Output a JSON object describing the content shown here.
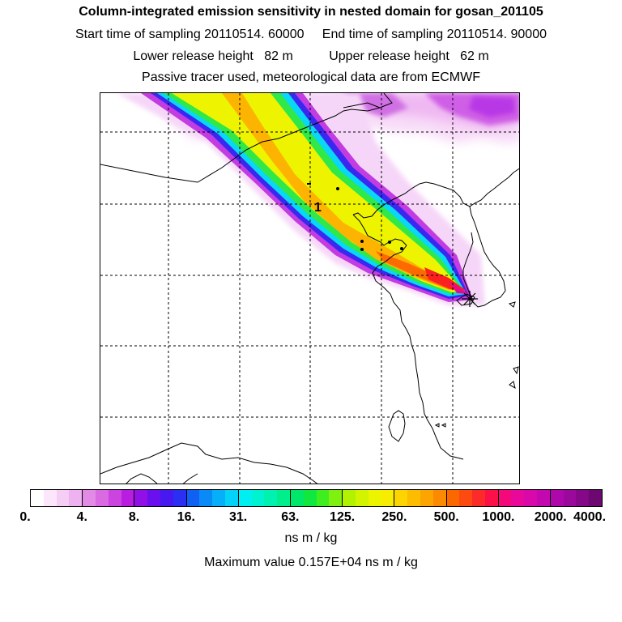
{
  "header": {
    "title": "Column-integrated emission sensitivity in nested domain for gosan_201105",
    "sampling_line": "Start time of sampling 20110514. 60000     End time of sampling 20110514. 90000",
    "height_line": "Lower release height   82 m          Upper release height   62 m",
    "tracer_line": "Passive tracer used, meteorological data are from ECMWF"
  },
  "map": {
    "region": "East Asia nested domain",
    "receptor_marker": "*",
    "cluster_label": "1"
  },
  "colorbar": {
    "unit": "ns m / kg",
    "tick_labels": [
      "0.",
      "4.",
      "8.",
      "16.",
      "31.",
      "63.",
      "125.",
      "250.",
      "500.",
      "1000.",
      "2000.",
      "4000."
    ],
    "colors": [
      "#ffffff",
      "#fbe6fb",
      "#f5cdf5",
      "#eeb2f0",
      "#e28ae6",
      "#d96ae2",
      "#cc44e0",
      "#b81de0",
      "#9010e6",
      "#6a10ee",
      "#4818f0",
      "#2a30f2",
      "#1060f4",
      "#0a8af6",
      "#06b0f8",
      "#04d2f8",
      "#00f0f2",
      "#00f2d0",
      "#00f2b0",
      "#00ee8c",
      "#00e86a",
      "#10e840",
      "#40ee20",
      "#80f010",
      "#b0f200",
      "#d2f400",
      "#ecf400",
      "#f8ec00",
      "#fcd400",
      "#fcbc00",
      "#fca400",
      "#fc8a00",
      "#fc6800",
      "#fc4a10",
      "#fc2a28",
      "#fc1048",
      "#f4087a",
      "#e8089a",
      "#d808aa",
      "#c408b0",
      "#ae08aa",
      "#9a089c",
      "#840888",
      "#6c0870"
    ]
  },
  "footer": {
    "unit_label": "ns m / kg",
    "max_value": "Maximum value  0.157E+04 ns m / kg"
  }
}
